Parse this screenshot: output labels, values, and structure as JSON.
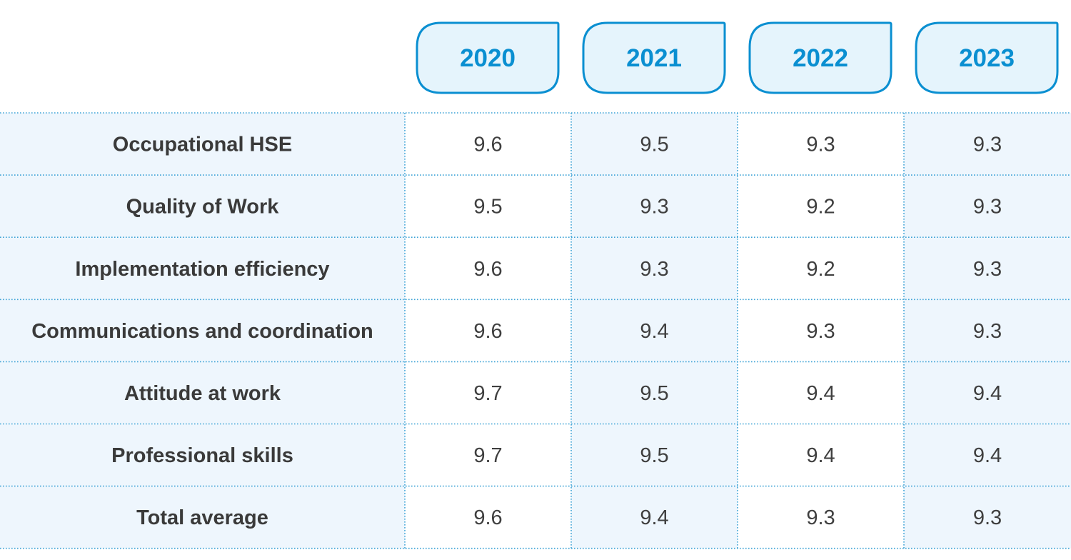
{
  "chart_data": {
    "type": "table",
    "columns": [
      "2020",
      "2021",
      "2022",
      "2023"
    ],
    "rows": [
      {
        "label": "Occupational HSE",
        "values": [
          "9.6",
          "9.5",
          "9.3",
          "9.3"
        ]
      },
      {
        "label": "Quality of Work",
        "values": [
          "9.5",
          "9.3",
          "9.2",
          "9.3"
        ]
      },
      {
        "label": "Implementation efficiency",
        "values": [
          "9.6",
          "9.3",
          "9.2",
          "9.3"
        ]
      },
      {
        "label": "Communications and coordination",
        "values": [
          "9.6",
          "9.4",
          "9.3",
          "9.3"
        ]
      },
      {
        "label": "Attitude at work",
        "values": [
          "9.7",
          "9.5",
          "9.4",
          "9.4"
        ]
      },
      {
        "label": "Professional skills",
        "values": [
          "9.7",
          "9.5",
          "9.4",
          "9.4"
        ]
      },
      {
        "label": "Total average",
        "values": [
          "9.6",
          "9.4",
          "9.3",
          "9.3"
        ]
      }
    ]
  },
  "colors": {
    "accent": "#0a8fd1",
    "header_fill": "#e5f4fc",
    "shaded_fill": "#eef6fd",
    "label_text": "#3a3a3a",
    "value_text": "#3f3f3f",
    "divider": "#3ea3d6"
  }
}
